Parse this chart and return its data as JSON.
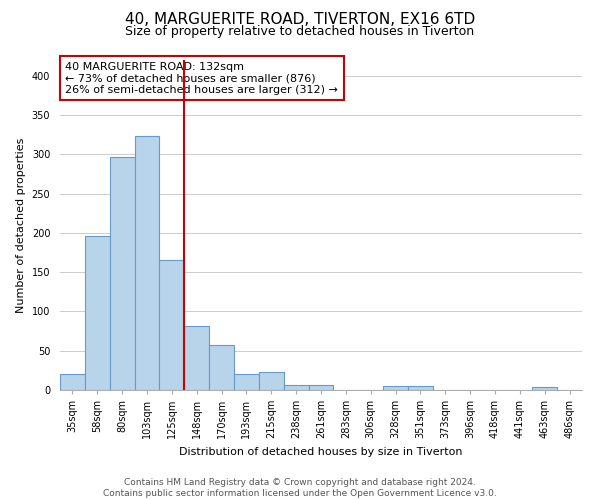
{
  "title": "40, MARGUERITE ROAD, TIVERTON, EX16 6TD",
  "subtitle": "Size of property relative to detached houses in Tiverton",
  "xlabel": "Distribution of detached houses by size in Tiverton",
  "ylabel": "Number of detached properties",
  "categories": [
    "35sqm",
    "58sqm",
    "80sqm",
    "103sqm",
    "125sqm",
    "148sqm",
    "170sqm",
    "193sqm",
    "215sqm",
    "238sqm",
    "261sqm",
    "283sqm",
    "306sqm",
    "328sqm",
    "351sqm",
    "373sqm",
    "396sqm",
    "418sqm",
    "441sqm",
    "463sqm",
    "486sqm"
  ],
  "values": [
    20,
    196,
    297,
    323,
    165,
    81,
    57,
    21,
    23,
    6,
    6,
    0,
    0,
    5,
    5,
    0,
    0,
    0,
    0,
    4,
    0
  ],
  "bar_color": "#b8d4ea",
  "bar_edge_color": "#6699cc",
  "vline_color": "#cc0000",
  "annotation_line1": "40 MARGUERITE ROAD: 132sqm",
  "annotation_line2": "← 73% of detached houses are smaller (876)",
  "annotation_line3": "26% of semi-detached houses are larger (312) →",
  "ylim": [
    0,
    420
  ],
  "yticks": [
    0,
    50,
    100,
    150,
    200,
    250,
    300,
    350,
    400
  ],
  "footer_text": "Contains HM Land Registry data © Crown copyright and database right 2024.\nContains public sector information licensed under the Open Government Licence v3.0.",
  "title_fontsize": 11,
  "subtitle_fontsize": 9,
  "ylabel_fontsize": 8,
  "xlabel_fontsize": 8,
  "tick_fontsize": 7,
  "annotation_fontsize": 8,
  "footer_fontsize": 6.5,
  "background_color": "#ffffff",
  "grid_color": "#cccccc"
}
